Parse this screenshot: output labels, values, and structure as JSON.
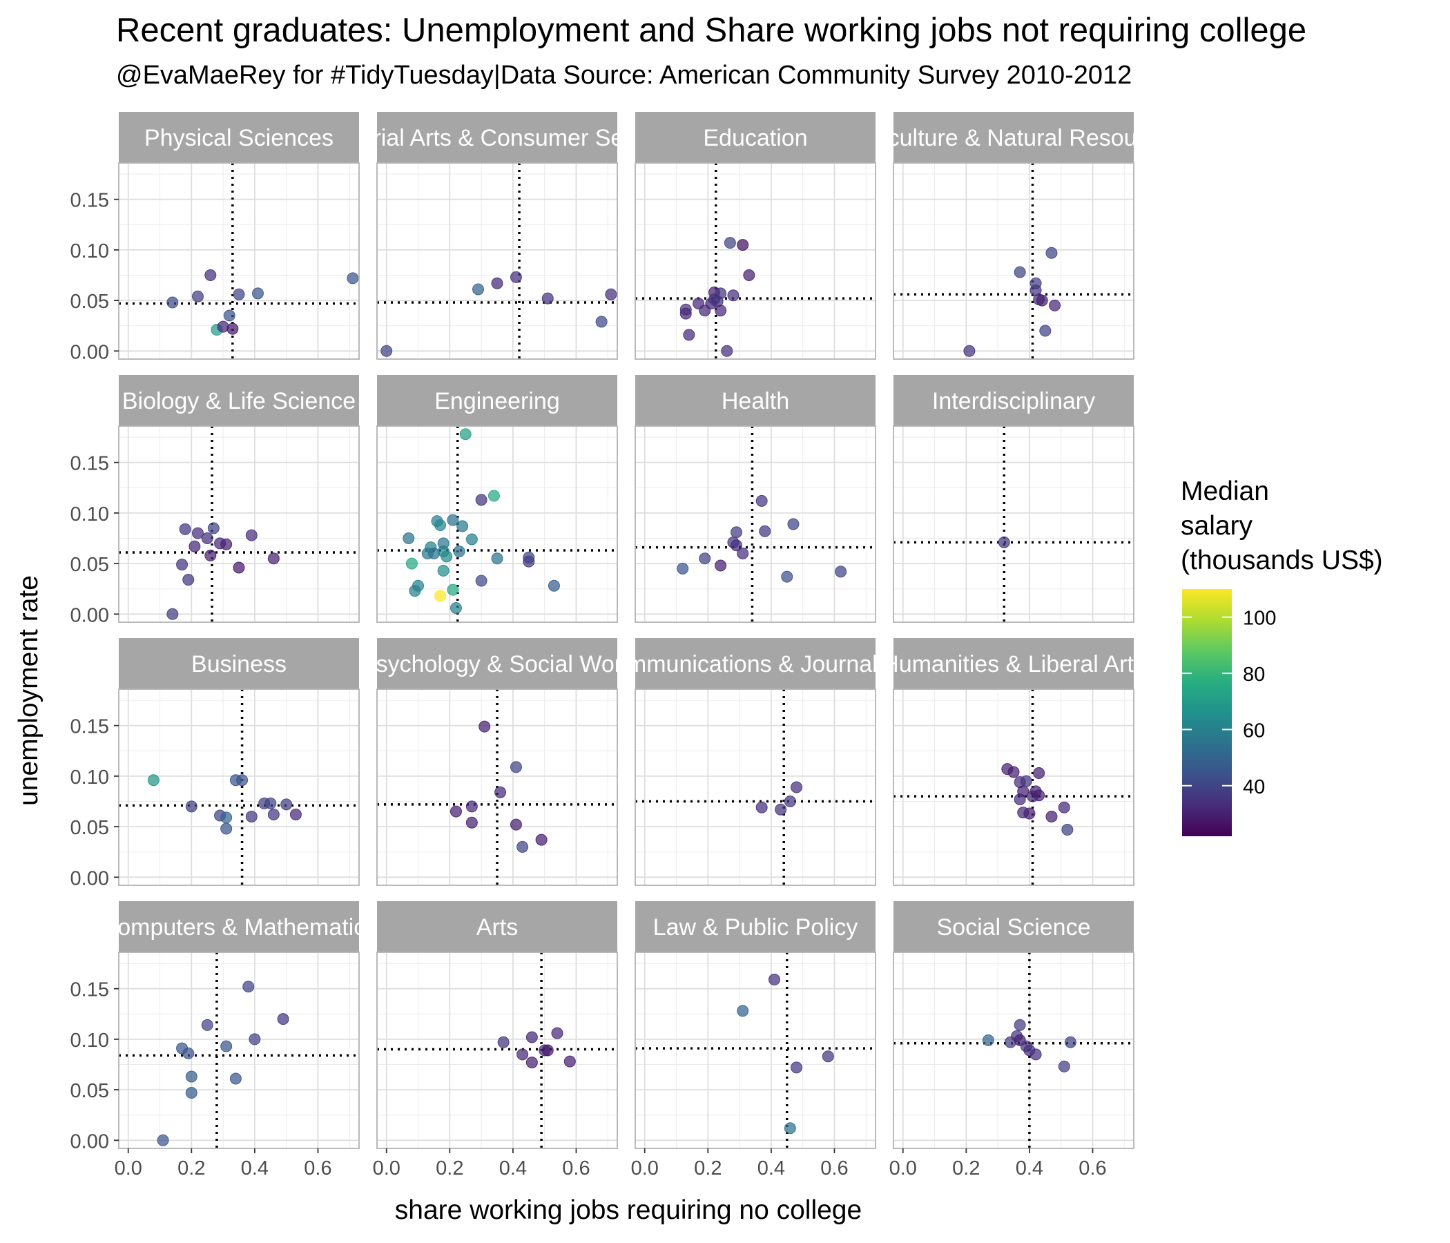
{
  "chart_data": {
    "type": "scatter",
    "title": "Recent graduates: Unemployment and Share working jobs not requiring college",
    "subtitle": "@EvaMaeRey for #TidyTuesday|Data Source: American Community Survey 2010-2012",
    "xlabel": "share working jobs requiring no college",
    "ylabel": "unemployment rate",
    "xlim": [
      -0.03,
      0.73
    ],
    "ylim": [
      -0.008,
      0.186
    ],
    "x_ticks": [
      "0.0",
      "0.2",
      "0.4",
      "0.6"
    ],
    "y_ticks": [
      "0.00",
      "0.05",
      "0.10",
      "0.15"
    ],
    "grid": true,
    "reference_lines": "dotted: median x and median y per facet",
    "colorscale": "viridis",
    "legend": {
      "title": [
        "Median",
        "salary",
        "(thousands US$)"
      ],
      "ticks": [
        "40",
        "60",
        "80",
        "100"
      ],
      "range": [
        22,
        110
      ],
      "placement": "right"
    },
    "facets": [
      {
        "name": "Physical Sciences",
        "vx": 0.33,
        "hy": 0.047,
        "points": [
          [
            0.14,
            0.048,
            42
          ],
          [
            0.22,
            0.054,
            38
          ],
          [
            0.26,
            0.075,
            34
          ],
          [
            0.28,
            0.021,
            70
          ],
          [
            0.3,
            0.024,
            32
          ],
          [
            0.32,
            0.035,
            45
          ],
          [
            0.33,
            0.022,
            28
          ],
          [
            0.35,
            0.056,
            40
          ],
          [
            0.41,
            0.057,
            45
          ],
          [
            0.71,
            0.072,
            45
          ]
        ]
      },
      {
        "name": "Industrial Arts & Consumer Services",
        "vx": 0.42,
        "hy": 0.048,
        "points": [
          [
            0.0,
            0.0,
            40
          ],
          [
            0.29,
            0.061,
            50
          ],
          [
            0.35,
            0.067,
            32
          ],
          [
            0.41,
            0.073,
            34
          ],
          [
            0.51,
            0.052,
            35
          ],
          [
            0.68,
            0.029,
            42
          ],
          [
            0.71,
            0.056,
            34
          ]
        ]
      },
      {
        "name": "Education",
        "vx": 0.225,
        "hy": 0.052,
        "points": [
          [
            0.13,
            0.041,
            35
          ],
          [
            0.13,
            0.037,
            32
          ],
          [
            0.14,
            0.016,
            32
          ],
          [
            0.17,
            0.047,
            32
          ],
          [
            0.19,
            0.04,
            32
          ],
          [
            0.21,
            0.047,
            32
          ],
          [
            0.22,
            0.058,
            30
          ],
          [
            0.22,
            0.051,
            35
          ],
          [
            0.23,
            0.049,
            35
          ],
          [
            0.24,
            0.057,
            35
          ],
          [
            0.24,
            0.04,
            32
          ],
          [
            0.26,
            0.0,
            34
          ],
          [
            0.27,
            0.107,
            40
          ],
          [
            0.28,
            0.055,
            34
          ],
          [
            0.31,
            0.105,
            26
          ],
          [
            0.33,
            0.075,
            30
          ]
        ]
      },
      {
        "name": "Agriculture & Natural Resources",
        "vx": 0.41,
        "hy": 0.056,
        "points": [
          [
            0.21,
            0.0,
            35
          ],
          [
            0.37,
            0.078,
            40
          ],
          [
            0.42,
            0.067,
            38
          ],
          [
            0.42,
            0.06,
            36
          ],
          [
            0.43,
            0.051,
            34
          ],
          [
            0.44,
            0.05,
            30
          ],
          [
            0.45,
            0.02,
            40
          ],
          [
            0.47,
            0.097,
            40
          ],
          [
            0.48,
            0.045,
            32
          ]
        ]
      },
      {
        "name": "Biology & Life Science",
        "vx": 0.265,
        "hy": 0.061,
        "points": [
          [
            0.14,
            0.0,
            38
          ],
          [
            0.17,
            0.049,
            36
          ],
          [
            0.18,
            0.084,
            36
          ],
          [
            0.19,
            0.034,
            36
          ],
          [
            0.21,
            0.067,
            32
          ],
          [
            0.22,
            0.08,
            34
          ],
          [
            0.25,
            0.075,
            34
          ],
          [
            0.26,
            0.058,
            30
          ],
          [
            0.27,
            0.085,
            40
          ],
          [
            0.29,
            0.07,
            32
          ],
          [
            0.31,
            0.069,
            30
          ],
          [
            0.35,
            0.046,
            28
          ],
          [
            0.39,
            0.078,
            34
          ],
          [
            0.46,
            0.055,
            30
          ]
        ]
      },
      {
        "name": "Engineering",
        "vx": 0.225,
        "hy": 0.063,
        "points": [
          [
            0.07,
            0.075,
            55
          ],
          [
            0.08,
            0.05,
            75
          ],
          [
            0.09,
            0.023,
            60
          ],
          [
            0.1,
            0.028,
            60
          ],
          [
            0.13,
            0.06,
            58
          ],
          [
            0.14,
            0.066,
            60
          ],
          [
            0.15,
            0.06,
            55
          ],
          [
            0.16,
            0.092,
            60
          ],
          [
            0.17,
            0.018,
            110
          ],
          [
            0.17,
            0.088,
            62
          ],
          [
            0.18,
            0.043,
            65
          ],
          [
            0.18,
            0.062,
            60
          ],
          [
            0.18,
            0.07,
            58
          ],
          [
            0.19,
            0.057,
            64
          ],
          [
            0.21,
            0.093,
            55
          ],
          [
            0.21,
            0.024,
            75
          ],
          [
            0.22,
            0.006,
            60
          ],
          [
            0.23,
            0.062,
            55
          ],
          [
            0.24,
            0.087,
            58
          ],
          [
            0.25,
            0.178,
            72
          ],
          [
            0.27,
            0.074,
            60
          ],
          [
            0.3,
            0.033,
            42
          ],
          [
            0.3,
            0.113,
            35
          ],
          [
            0.34,
            0.117,
            75
          ],
          [
            0.35,
            0.055,
            55
          ],
          [
            0.45,
            0.052,
            35
          ],
          [
            0.45,
            0.056,
            40
          ],
          [
            0.53,
            0.028,
            48
          ]
        ]
      },
      {
        "name": "Health",
        "vx": 0.34,
        "hy": 0.066,
        "points": [
          [
            0.12,
            0.045,
            45
          ],
          [
            0.19,
            0.055,
            40
          ],
          [
            0.24,
            0.048,
            30
          ],
          [
            0.28,
            0.071,
            36
          ],
          [
            0.29,
            0.081,
            38
          ],
          [
            0.29,
            0.068,
            34
          ],
          [
            0.31,
            0.06,
            34
          ],
          [
            0.37,
            0.112,
            36
          ],
          [
            0.38,
            0.082,
            36
          ],
          [
            0.45,
            0.037,
            44
          ],
          [
            0.47,
            0.089,
            40
          ],
          [
            0.62,
            0.042,
            40
          ]
        ]
      },
      {
        "name": "Interdisciplinary",
        "vx": 0.32,
        "hy": 0.071,
        "points": [
          [
            0.32,
            0.071,
            36
          ]
        ]
      },
      {
        "name": "Business",
        "vx": 0.36,
        "hy": 0.071,
        "points": [
          [
            0.08,
            0.096,
            68
          ],
          [
            0.2,
            0.07,
            38
          ],
          [
            0.29,
            0.061,
            40
          ],
          [
            0.31,
            0.048,
            45
          ],
          [
            0.31,
            0.059,
            50
          ],
          [
            0.34,
            0.096,
            45
          ],
          [
            0.36,
            0.096,
            45
          ],
          [
            0.39,
            0.06,
            36
          ],
          [
            0.43,
            0.073,
            38
          ],
          [
            0.45,
            0.073,
            40
          ],
          [
            0.46,
            0.062,
            36
          ],
          [
            0.5,
            0.072,
            38
          ],
          [
            0.53,
            0.062,
            32
          ]
        ]
      },
      {
        "name": "Psychology & Social Work",
        "vx": 0.35,
        "hy": 0.072,
        "points": [
          [
            0.22,
            0.065,
            30
          ],
          [
            0.27,
            0.07,
            32
          ],
          [
            0.27,
            0.054,
            30
          ],
          [
            0.31,
            0.149,
            30
          ],
          [
            0.36,
            0.084,
            32
          ],
          [
            0.41,
            0.109,
            40
          ],
          [
            0.41,
            0.052,
            30
          ],
          [
            0.43,
            0.03,
            40
          ],
          [
            0.49,
            0.037,
            30
          ]
        ]
      },
      {
        "name": "Communications & Journalism",
        "vx": 0.44,
        "hy": 0.075,
        "points": [
          [
            0.37,
            0.069,
            34
          ],
          [
            0.43,
            0.067,
            35
          ],
          [
            0.46,
            0.075,
            36
          ],
          [
            0.48,
            0.089,
            34
          ]
        ]
      },
      {
        "name": "Humanities & Liberal Arts",
        "vx": 0.41,
        "hy": 0.08,
        "points": [
          [
            0.33,
            0.107,
            30
          ],
          [
            0.35,
            0.104,
            30
          ],
          [
            0.37,
            0.094,
            34
          ],
          [
            0.37,
            0.077,
            34
          ],
          [
            0.38,
            0.064,
            32
          ],
          [
            0.38,
            0.085,
            30
          ],
          [
            0.39,
            0.095,
            36
          ],
          [
            0.4,
            0.063,
            30
          ],
          [
            0.41,
            0.08,
            32
          ],
          [
            0.42,
            0.085,
            30
          ],
          [
            0.43,
            0.103,
            30
          ],
          [
            0.43,
            0.081,
            30
          ],
          [
            0.47,
            0.06,
            30
          ],
          [
            0.51,
            0.069,
            32
          ],
          [
            0.52,
            0.047,
            40
          ]
        ]
      },
      {
        "name": "Computers & Mathematics",
        "vx": 0.28,
        "hy": 0.084,
        "points": [
          [
            0.11,
            0.0,
            45
          ],
          [
            0.17,
            0.091,
            45
          ],
          [
            0.19,
            0.086,
            45
          ],
          [
            0.2,
            0.063,
            48
          ],
          [
            0.2,
            0.047,
            48
          ],
          [
            0.25,
            0.114,
            40
          ],
          [
            0.31,
            0.093,
            45
          ],
          [
            0.34,
            0.061,
            45
          ],
          [
            0.38,
            0.152,
            40
          ],
          [
            0.4,
            0.1,
            40
          ],
          [
            0.49,
            0.12,
            36
          ]
        ]
      },
      {
        "name": "Arts",
        "vx": 0.49,
        "hy": 0.09,
        "points": [
          [
            0.37,
            0.097,
            35
          ],
          [
            0.43,
            0.085,
            32
          ],
          [
            0.46,
            0.102,
            32
          ],
          [
            0.46,
            0.077,
            30
          ],
          [
            0.5,
            0.089,
            34
          ],
          [
            0.51,
            0.089,
            28
          ],
          [
            0.54,
            0.106,
            32
          ],
          [
            0.58,
            0.078,
            30
          ]
        ]
      },
      {
        "name": "Law & Public Policy",
        "vx": 0.45,
        "hy": 0.091,
        "points": [
          [
            0.31,
            0.128,
            50
          ],
          [
            0.41,
            0.159,
            35
          ],
          [
            0.46,
            0.012,
            55
          ],
          [
            0.48,
            0.072,
            36
          ],
          [
            0.58,
            0.083,
            36
          ]
        ]
      },
      {
        "name": "Social Science",
        "vx": 0.4,
        "hy": 0.096,
        "points": [
          [
            0.27,
            0.099,
            50
          ],
          [
            0.34,
            0.097,
            38
          ],
          [
            0.36,
            0.103,
            36
          ],
          [
            0.37,
            0.099,
            30
          ],
          [
            0.37,
            0.114,
            38
          ],
          [
            0.39,
            0.093,
            36
          ],
          [
            0.4,
            0.089,
            34
          ],
          [
            0.42,
            0.085,
            34
          ],
          [
            0.51,
            0.073,
            38
          ],
          [
            0.53,
            0.097,
            40
          ]
        ]
      }
    ]
  }
}
